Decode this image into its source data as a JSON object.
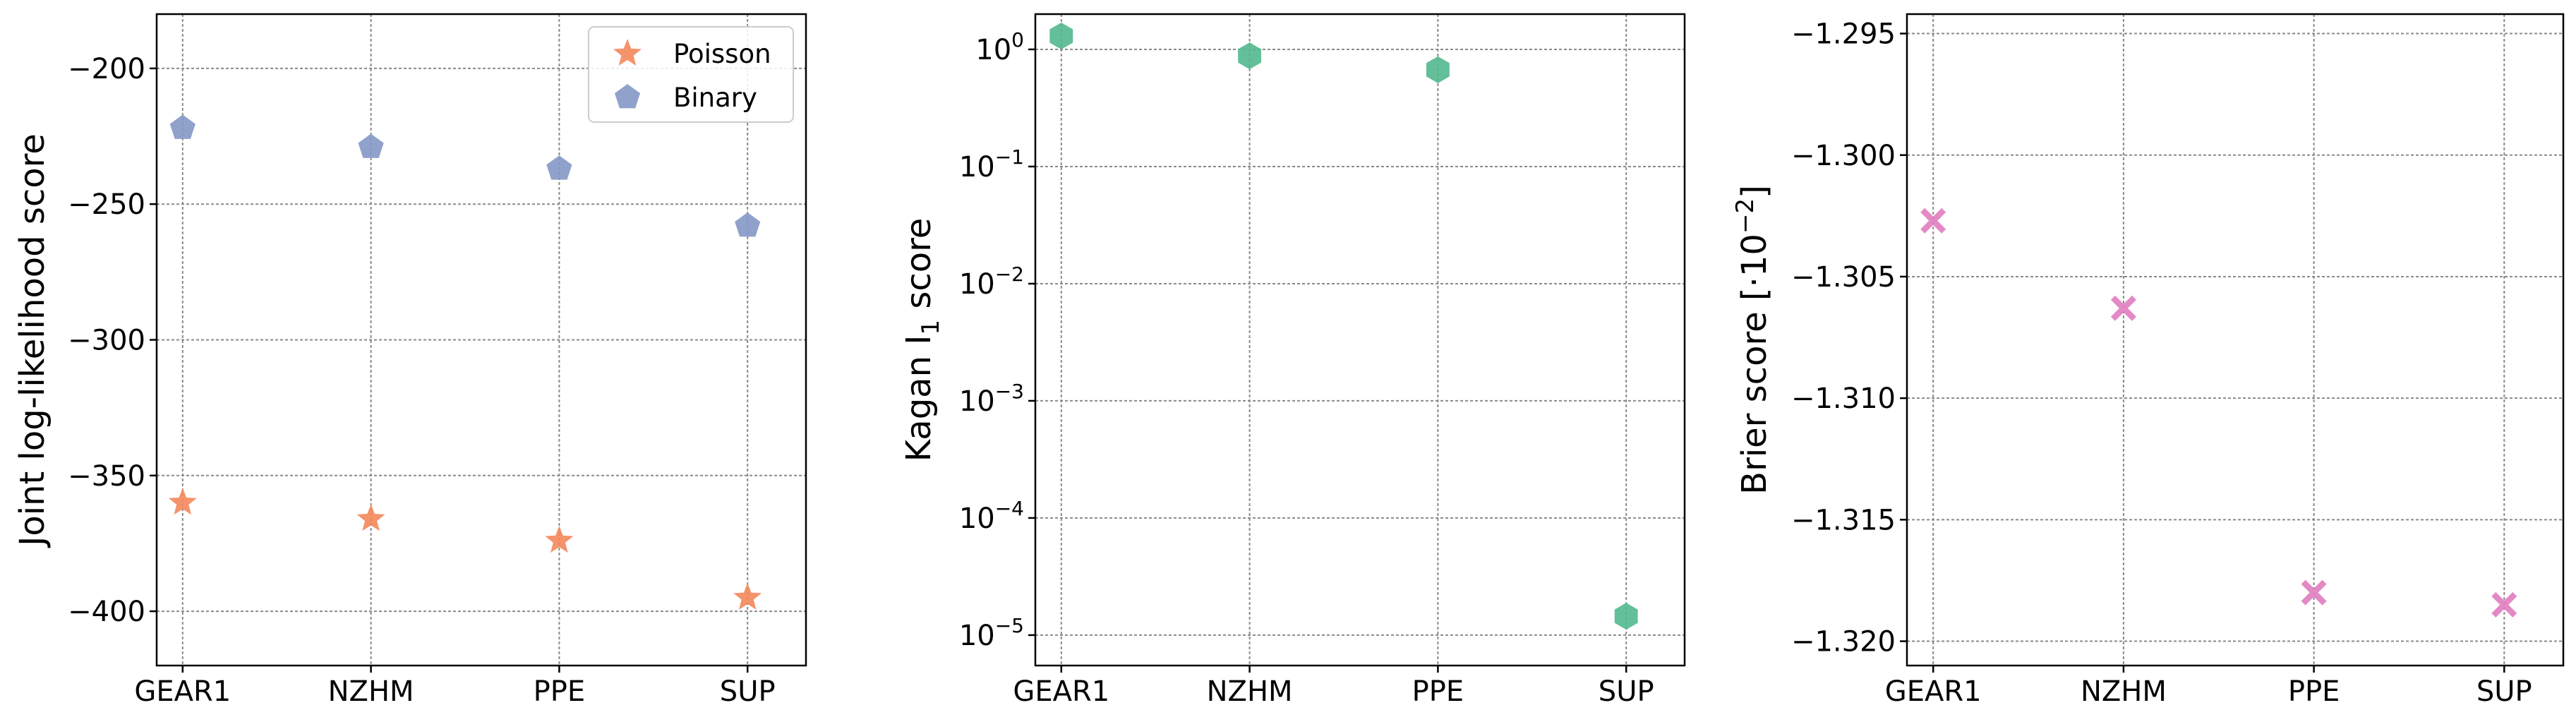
{
  "chart_data": [
    {
      "type": "scatter",
      "categories": [
        "GEAR1",
        "NZHM",
        "PPE",
        "SUP"
      ],
      "ylabel": "Joint log-likelihood score",
      "xlabel": "",
      "title": "",
      "ylim": [
        -420,
        -180
      ],
      "yticks": [
        -200,
        -250,
        -300,
        -350,
        -400
      ],
      "ytick_labels": [
        "−200",
        "−250",
        "−300",
        "−350",
        "−400"
      ],
      "grid": true,
      "legend": "top-right",
      "series": [
        {
          "name": "Poisson",
          "marker": "star",
          "color": "#f4875b",
          "values": [
            -360,
            -366,
            -374,
            -395
          ]
        },
        {
          "name": "Binary",
          "marker": "pentagon",
          "color": "#8498c6",
          "values": [
            -222,
            -229,
            -237,
            -258
          ]
        }
      ]
    },
    {
      "type": "scatter",
      "categories": [
        "GEAR1",
        "NZHM",
        "PPE",
        "SUP"
      ],
      "ylabel_main": "Kagan I",
      "ylabel_sub": "1",
      "ylabel_tail": " score",
      "xlabel": "",
      "title": "",
      "yscale": "log",
      "ylim": [
        5.5e-06,
        2.0
      ],
      "ytick_exponents": [
        0,
        -1,
        -2,
        -3,
        -4,
        -5
      ],
      "ytick_base": "10",
      "grid": true,
      "series": [
        {
          "marker": "hexagon",
          "color": "#52b88e",
          "values": [
            1.3,
            0.88,
            0.67,
            1.45e-05
          ]
        }
      ]
    },
    {
      "type": "scatter",
      "categories": [
        "GEAR1",
        "NZHM",
        "PPE",
        "SUP"
      ],
      "ylabel_main": "Brier score [·10",
      "ylabel_sup": "−2",
      "ylabel_tail": "]",
      "xlabel": "",
      "title": "",
      "ylim": [
        -1.321,
        -1.2942
      ],
      "yticks": [
        -1.295,
        -1.3,
        -1.305,
        -1.31,
        -1.315,
        -1.32
      ],
      "ytick_labels": [
        "−1.295",
        "−1.300",
        "−1.305",
        "−1.310",
        "−1.315",
        "−1.320"
      ],
      "grid": true,
      "series": [
        {
          "marker": "x",
          "color": "#e07cbf",
          "values": [
            -1.3027,
            -1.3063,
            -1.318,
            -1.3185
          ]
        }
      ]
    }
  ]
}
